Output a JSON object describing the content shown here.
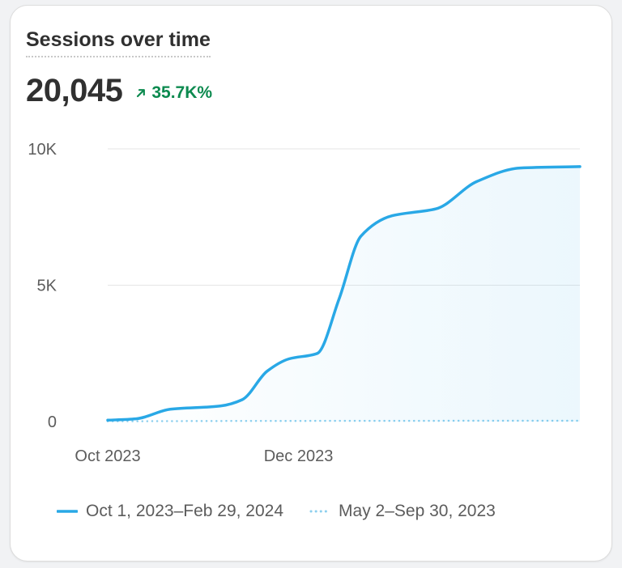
{
  "card": {
    "title": "Sessions over time",
    "metric_value": "20,045",
    "delta": "35.7K%",
    "delta_icon": "arrow-up-right-icon",
    "delta_color": "#0c8a4f"
  },
  "legend": [
    {
      "label": "Oct 1, 2023–Feb 29, 2024",
      "style": "solid",
      "color": "#29a8e6"
    },
    {
      "label": "May 2–Sep 30, 2023",
      "style": "dotted",
      "color": "#8ccfee"
    }
  ],
  "chart_data": {
    "type": "area",
    "title": "Sessions over time",
    "ylim": [
      0,
      10000
    ],
    "y_ticks": [
      {
        "value": 0,
        "label": "0"
      },
      {
        "value": 5000,
        "label": "5K"
      },
      {
        "value": 10000,
        "label": "10K"
      }
    ],
    "x_range": [
      "2023-10-01",
      "2024-02-29"
    ],
    "x_ticks": [
      {
        "date": "2023-10-01",
        "label": "Oct 2023"
      },
      {
        "date": "2023-12-01",
        "label": "Dec 2023"
      }
    ],
    "grid": true,
    "legend_position": "bottom",
    "series": [
      {
        "name": "Oct 1, 2023–Feb 29, 2024",
        "color": "#29a8e6",
        "style": "solid",
        "filled": true,
        "points": [
          {
            "x": "2023-10-01",
            "y": 50
          },
          {
            "x": "2023-10-10",
            "y": 100
          },
          {
            "x": "2023-10-21",
            "y": 450
          },
          {
            "x": "2023-11-06",
            "y": 570
          },
          {
            "x": "2023-11-13",
            "y": 800
          },
          {
            "x": "2023-11-21",
            "y": 1850
          },
          {
            "x": "2023-11-28",
            "y": 2300
          },
          {
            "x": "2023-12-07",
            "y": 2500
          },
          {
            "x": "2023-12-14",
            "y": 4500
          },
          {
            "x": "2023-12-21",
            "y": 6800
          },
          {
            "x": "2023-12-31",
            "y": 7550
          },
          {
            "x": "2024-01-14",
            "y": 7800
          },
          {
            "x": "2024-01-27",
            "y": 8800
          },
          {
            "x": "2024-02-10",
            "y": 9300
          },
          {
            "x": "2024-02-29",
            "y": 9350
          }
        ]
      },
      {
        "name": "May 2–Sep 30, 2023",
        "color": "#8ccfee",
        "style": "dotted",
        "filled": false,
        "points": [
          {
            "x": "2023-10-01",
            "y": 10
          },
          {
            "x": "2023-12-01",
            "y": 25
          },
          {
            "x": "2024-02-29",
            "y": 30
          }
        ]
      }
    ]
  }
}
